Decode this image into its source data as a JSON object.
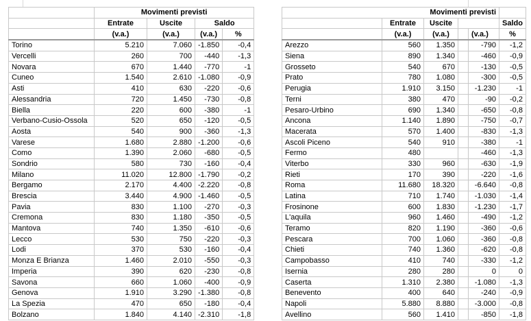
{
  "left_table": {
    "header": {
      "group": "Movimenti previsti",
      "entrate": "Entrate",
      "uscite": "Uscite",
      "saldo": "Saldo",
      "va": "(v.a.)",
      "pct": "%"
    },
    "rows": [
      [
        "Torino",
        "5.210",
        "7.060",
        "-1.850",
        "-0,4"
      ],
      [
        "Vercelli",
        "260",
        "700",
        "-440",
        "-1,3"
      ],
      [
        "Novara",
        "670",
        "1.440",
        "-770",
        "-1"
      ],
      [
        "Cuneo",
        "1.540",
        "2.610",
        "-1.080",
        "-0,9"
      ],
      [
        "Asti",
        "410",
        "630",
        "-220",
        "-0,6"
      ],
      [
        "Alessandria",
        "720",
        "1.450",
        "-730",
        "-0,8"
      ],
      [
        "Biella",
        "220",
        "600",
        "-380",
        "-1"
      ],
      [
        "Verbano-Cusio-Ossola",
        "520",
        "650",
        "-120",
        "-0,5"
      ],
      [
        "Aosta",
        "540",
        "900",
        "-360",
        "-1,3"
      ],
      [
        "Varese",
        "1.680",
        "2.880",
        "-1.200",
        "-0,6"
      ],
      [
        "Como",
        "1.390",
        "2.060",
        "-680",
        "-0,5"
      ],
      [
        "Sondrio",
        "580",
        "730",
        "-160",
        "-0,4"
      ],
      [
        "Milano",
        "11.020",
        "12.800",
        "-1.790",
        "-0,2"
      ],
      [
        "Bergamo",
        "2.170",
        "4.400",
        "-2.220",
        "-0,8"
      ],
      [
        "Brescia",
        "3.440",
        "4.900",
        "-1.460",
        "-0,5"
      ],
      [
        "Pavia",
        "830",
        "1.100",
        "-270",
        "-0,3"
      ],
      [
        "Cremona",
        "830",
        "1.180",
        "-350",
        "-0,5"
      ],
      [
        "Mantova",
        "740",
        "1.350",
        "-610",
        "-0,6"
      ],
      [
        "Lecco",
        "530",
        "750",
        "-220",
        "-0,3"
      ],
      [
        "Lodi",
        "370",
        "530",
        "-160",
        "-0,4"
      ],
      [
        "Monza E Brianza",
        "1.460",
        "2.010",
        "-550",
        "-0,3"
      ],
      [
        "Imperia",
        "390",
        "620",
        "-230",
        "-0,8"
      ],
      [
        "Savona",
        "660",
        "1.060",
        "-400",
        "-0,9"
      ],
      [
        "Genova",
        "1.910",
        "3.290",
        "-1.380",
        "-0,8"
      ],
      [
        "La Spezia",
        "470",
        "650",
        "-180",
        "-0,4"
      ],
      [
        "Bolzano",
        "1.840",
        "4.140",
        "-2.310",
        "-1,8"
      ]
    ]
  },
  "right_table": {
    "header": {
      "group": "Movimenti previsti",
      "entrate": "Entrate",
      "uscite": "Uscite",
      "saldo": "Saldo",
      "va": "(v.a.)",
      "pct": "%"
    },
    "rows": [
      [
        "Arezzo",
        "560",
        "1.350",
        "-790",
        "-1,2"
      ],
      [
        "Siena",
        "890",
        "1.340",
        "-460",
        "-0,9"
      ],
      [
        "Grosseto",
        "540",
        "670",
        "-130",
        "-0,5"
      ],
      [
        "Prato",
        "780",
        "1.080",
        "-300",
        "-0,5"
      ],
      [
        "Perugia",
        "1.910",
        "3.150",
        "-1.230",
        "-1"
      ],
      [
        "Terni",
        "380",
        "470",
        "-90",
        "-0,2"
      ],
      [
        "Pesaro-Urbino",
        "690",
        "1.340",
        "-650",
        "-0,8"
      ],
      [
        "Ancona",
        "1.140",
        "1.890",
        "-750",
        "-0,7"
      ],
      [
        "Macerata",
        "570",
        "1.400",
        "-830",
        "-1,3"
      ],
      [
        "Ascoli Piceno",
        "540",
        "910",
        "-380",
        "-1"
      ],
      [
        "Fermo",
        "480",
        "",
        "-460",
        "-1,3"
      ],
      [
        "Viterbo",
        "330",
        "960",
        "-630",
        "-1,9"
      ],
      [
        "Rieti",
        "170",
        "390",
        "-220",
        "-1,6"
      ],
      [
        "Roma",
        "11.680",
        "18.320",
        "-6.640",
        "-0,8"
      ],
      [
        "Latina",
        "710",
        "1.740",
        "-1.030",
        "-1,4"
      ],
      [
        "Frosinone",
        "600",
        "1.830",
        "-1.230",
        "-1,7"
      ],
      [
        "L'aquila",
        "960",
        "1.460",
        "-490",
        "-1,2"
      ],
      [
        "Teramo",
        "820",
        "1.190",
        "-360",
        "-0,6"
      ],
      [
        "Pescara",
        "700",
        "1.060",
        "-360",
        "-0,8"
      ],
      [
        "Chieti",
        "740",
        "1.360",
        "-620",
        "-0,8"
      ],
      [
        "Campobasso",
        "410",
        "740",
        "-330",
        "-1,2"
      ],
      [
        "Isernia",
        "280",
        "280",
        "0",
        "0"
      ],
      [
        "Caserta",
        "1.310",
        "2.380",
        "-1.080",
        "-1,3"
      ],
      [
        "Benevento",
        "400",
        "640",
        "-240",
        "-0,9"
      ],
      [
        "Napoli",
        "5.880",
        "8.880",
        "-3.000",
        "-0,8"
      ],
      [
        "Avellino",
        "560",
        "1.410",
        "-850",
        "-1,8"
      ]
    ]
  }
}
